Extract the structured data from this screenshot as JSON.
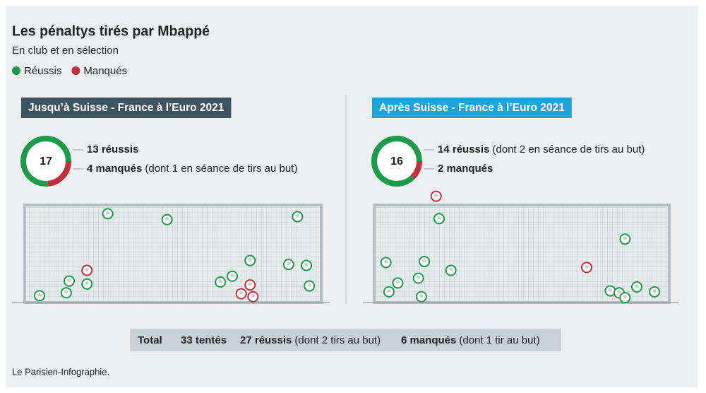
{
  "title": "Les pénaltys tirés par Mbappé",
  "subtitle": "En club et en sélection",
  "legend": [
    {
      "name": "Réussis",
      "color": "#1e9a4b"
    },
    {
      "name": "Manqués",
      "color": "#c2313b"
    }
  ],
  "panels": [
    {
      "label": "Jusqu’à Suisse - France à l’Euro 2021",
      "label_color": "#3d5561",
      "donut": {
        "total": 17,
        "values": [
          13,
          4
        ]
      },
      "stats": [
        {
          "bold": "13 réussis"
        },
        {
          "bold": "4 manqués",
          "note": "(dont 1 en séance de tirs au but)"
        }
      ],
      "shots": [
        {
          "x": 5,
          "y": 7,
          "scored": true
        },
        {
          "x": 14,
          "y": 10,
          "scored": true
        },
        {
          "x": 15,
          "y": 22,
          "scored": true
        },
        {
          "x": 21,
          "y": 19,
          "scored": true
        },
        {
          "x": 28,
          "y": 91,
          "scored": true
        },
        {
          "x": 48,
          "y": 85,
          "scored": true
        },
        {
          "x": 66,
          "y": 21,
          "scored": true
        },
        {
          "x": 70,
          "y": 27,
          "scored": true
        },
        {
          "x": 76,
          "y": 43,
          "scored": true
        },
        {
          "x": 89,
          "y": 39,
          "scored": true
        },
        {
          "x": 95,
          "y": 38,
          "scored": true
        },
        {
          "x": 96,
          "y": 17,
          "scored": true
        },
        {
          "x": 92,
          "y": 88,
          "scored": true
        },
        {
          "x": 21,
          "y": 33,
          "scored": false
        },
        {
          "x": 73,
          "y": 9,
          "scored": false
        },
        {
          "x": 76,
          "y": 18,
          "scored": false
        },
        {
          "x": 77,
          "y": 6,
          "scored": false
        }
      ]
    },
    {
      "label": "Après Suisse - France à l’Euro 2021",
      "label_color": "#1ea3da",
      "donut": {
        "total": 16,
        "values": [
          14,
          2
        ]
      },
      "stats": [
        {
          "bold": "14 réussis",
          "note": "(dont 2 en séance de tirs au but)"
        },
        {
          "bold": "2 manqués"
        }
      ],
      "shots": [
        {
          "x": 4,
          "y": 41,
          "scored": true
        },
        {
          "x": 5,
          "y": 11,
          "scored": true
        },
        {
          "x": 8,
          "y": 20,
          "scored": true
        },
        {
          "x": 15,
          "y": 25,
          "scored": true
        },
        {
          "x": 16,
          "y": 6,
          "scored": true
        },
        {
          "x": 17,
          "y": 42,
          "scored": true
        },
        {
          "x": 22,
          "y": 86,
          "scored": true
        },
        {
          "x": 26,
          "y": 33,
          "scored": true
        },
        {
          "x": 85,
          "y": 65,
          "scored": true
        },
        {
          "x": 80,
          "y": 12,
          "scored": true
        },
        {
          "x": 83,
          "y": 10,
          "scored": true
        },
        {
          "x": 85,
          "y": 5,
          "scored": true
        },
        {
          "x": 89,
          "y": 16,
          "scored": true
        },
        {
          "x": 95,
          "y": 11,
          "scored": true
        },
        {
          "x": 21,
          "y": 109,
          "scored": false
        },
        {
          "x": 72,
          "y": 36,
          "scored": false
        }
      ]
    }
  ],
  "total": {
    "label": "Total",
    "attempts": "33 tentés",
    "scored": "27 réussis",
    "scored_note": "(dont 2 tirs au but)",
    "missed": "6 manqués",
    "missed_note": "(dont 1 tir au but)"
  },
  "source": "Le Parisien-Infographie."
}
